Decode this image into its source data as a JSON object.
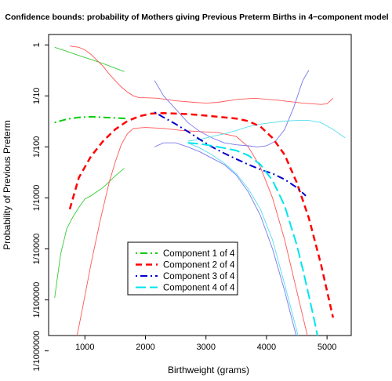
{
  "chart_data": {
    "type": "line",
    "title": "Confidence bounds: probability of Mothers giving Previous Preterm Births in 4−component model",
    "xlabel": "Birthweight (grams)",
    "ylabel": "Probability of Previous Preterm",
    "log_y": true,
    "xlim": [
      400,
      5400
    ],
    "ylim": [
      2e-06,
      1.6
    ],
    "grid": false,
    "legend_position": "bottom-left",
    "x_ticks": [
      {
        "value": 1000,
        "label": "1000"
      },
      {
        "value": 2000,
        "label": "2000"
      },
      {
        "value": 3000,
        "label": "3000"
      },
      {
        "value": 4000,
        "label": "4000"
      },
      {
        "value": 5000,
        "label": "5000"
      }
    ],
    "y_ticks": [
      {
        "value": 1,
        "label": "1"
      },
      {
        "value": 0.1,
        "label": "1/10"
      },
      {
        "value": 0.01,
        "label": "1/100"
      },
      {
        "value": 0.001,
        "label": "1/1000"
      },
      {
        "value": 0.0001,
        "label": "1/10000"
      },
      {
        "value": 1e-05,
        "label": "1/100000"
      },
      {
        "value": 1e-06,
        "label": "1/1000000"
      }
    ],
    "series": [
      {
        "name": "Component 1 of 4",
        "color": "#00cc00",
        "dash": "dotdash",
        "width": 2,
        "x": [
          500,
          700,
          900,
          1100,
          1300,
          1500,
          1700
        ],
        "y": [
          0.03,
          0.035,
          0.038,
          0.039,
          0.038,
          0.037,
          0.036
        ]
      },
      {
        "name": "Component 2 of 4",
        "color": "#ff0000",
        "dash": "dash",
        "width": 2.5,
        "x": [
          750,
          900,
          1100,
          1300,
          1500,
          1700,
          1900,
          2100,
          2300,
          2500,
          2700,
          2900,
          3100,
          3300,
          3500,
          3700,
          3900,
          4100,
          4300,
          4500,
          4700,
          4900,
          5000,
          5100
        ],
        "y": [
          0.0006,
          0.0025,
          0.0065,
          0.013,
          0.022,
          0.032,
          0.04,
          0.045,
          0.046,
          0.045,
          0.044,
          0.042,
          0.04,
          0.038,
          0.036,
          0.032,
          0.025,
          0.015,
          0.007,
          0.002,
          0.0004,
          5e-05,
          1.5e-05,
          4.5e-06
        ]
      },
      {
        "name": "Component 3 of 4",
        "color": "#0000cc",
        "dash": "dotdash",
        "width": 2,
        "x": [
          2150,
          2300,
          2500,
          2700,
          2900,
          3100,
          3300,
          3500,
          3700,
          3900,
          4100,
          4300,
          4500,
          4650
        ],
        "y": [
          0.048,
          0.038,
          0.028,
          0.02,
          0.014,
          0.01,
          0.0075,
          0.0058,
          0.0045,
          0.0036,
          0.003,
          0.0023,
          0.0016,
          0.0011
        ]
      },
      {
        "name": "Component 4 of 4",
        "color": "#00e5ee",
        "dash": "longdash",
        "width": 2,
        "x": [
          2700,
          2900,
          3100,
          3300,
          3500,
          3700,
          3900,
          4100,
          4300,
          4500,
          4600,
          4700,
          4800,
          4850
        ],
        "y": [
          0.012,
          0.0115,
          0.0105,
          0.0095,
          0.0085,
          0.0068,
          0.0045,
          0.0022,
          0.0007,
          0.00012,
          4e-05,
          1.2e-05,
          3.5e-06,
          1.8e-06
        ]
      }
    ],
    "bounds": [
      {
        "color": "#33cc33",
        "width": 0.9,
        "x": [
          500,
          700,
          900,
          1100,
          1300,
          1500,
          1650
        ],
        "y": [
          0.9,
          0.75,
          0.62,
          0.52,
          0.43,
          0.35,
          0.3
        ]
      },
      {
        "color": "#33cc33",
        "width": 0.9,
        "x": [
          500,
          600,
          700,
          800,
          900,
          1000,
          1100,
          1300,
          1500,
          1650
        ],
        "y": [
          1.1e-05,
          8e-05,
          0.00025,
          0.00042,
          0.00065,
          0.00095,
          0.0011,
          0.0016,
          0.0027,
          0.0038
        ]
      },
      {
        "color": "#ff5555",
        "width": 0.9,
        "x": [
          750,
          900,
          1000,
          1100,
          1200,
          1300,
          1400,
          1500,
          1600,
          1700,
          1800,
          1900,
          2000,
          2200,
          2500,
          2800,
          3000,
          3200,
          3500,
          3800,
          4200,
          4600,
          4900,
          5000,
          5100
        ],
        "y": [
          0.95,
          0.9,
          0.8,
          0.65,
          0.5,
          0.38,
          0.27,
          0.2,
          0.15,
          0.12,
          0.1,
          0.092,
          0.092,
          0.09,
          0.08,
          0.075,
          0.072,
          0.075,
          0.085,
          0.09,
          0.082,
          0.072,
          0.068,
          0.07,
          0.09
        ]
      },
      {
        "color": "#ff5555",
        "width": 0.9,
        "x": [
          850,
          950,
          1100,
          1250,
          1400,
          1500,
          1600,
          1700,
          1800,
          2000,
          2300,
          2600,
          2900,
          3200,
          3500,
          3700,
          3900,
          4100,
          4300,
          4500,
          4700
        ],
        "y": [
          1.5e-06,
          6e-06,
          5e-05,
          0.00035,
          0.002,
          0.005,
          0.011,
          0.018,
          0.023,
          0.024,
          0.023,
          0.021,
          0.02,
          0.019,
          0.016,
          0.01,
          0.004,
          0.001,
          0.00015,
          1.5e-05,
          1.5e-06
        ]
      },
      {
        "color": "#7777ee",
        "width": 0.9,
        "x": [
          2150,
          2300,
          2500,
          2700,
          2900,
          3100,
          3300,
          3500,
          3700,
          3850,
          4000,
          4150,
          4300,
          4450,
          4600,
          4700
        ],
        "y": [
          0.2,
          0.1,
          0.055,
          0.03,
          0.02,
          0.015,
          0.012,
          0.011,
          0.0105,
          0.01,
          0.0105,
          0.013,
          0.022,
          0.06,
          0.2,
          0.32
        ]
      },
      {
        "color": "#7777ee",
        "width": 0.9,
        "x": [
          2150,
          2300,
          2500,
          2700,
          2900,
          3100,
          3300,
          3500,
          3700,
          3900,
          4100,
          4300,
          4500,
          4600,
          4700
        ],
        "y": [
          0.01,
          0.012,
          0.012,
          0.01,
          0.008,
          0.006,
          0.0045,
          0.0028,
          0.0013,
          0.00045,
          0.0001,
          1.5e-05,
          1.8e-06,
          6e-07,
          2e-07
        ]
      },
      {
        "color": "#55ddee",
        "width": 0.9,
        "x": [
          2700,
          2900,
          3100,
          3300,
          3500,
          3700,
          3900,
          4100,
          4300,
          4500,
          4700,
          4900,
          5100,
          5300
        ],
        "y": [
          0.013,
          0.014,
          0.016,
          0.018,
          0.021,
          0.025,
          0.028,
          0.03,
          0.032,
          0.033,
          0.033,
          0.03,
          0.022,
          0.015
        ]
      },
      {
        "color": "#55ddee",
        "width": 0.9,
        "x": [
          2700,
          2900,
          3100,
          3300,
          3500,
          3700,
          3900,
          4100,
          4300,
          4500,
          4600,
          4700
        ],
        "y": [
          0.012,
          0.0095,
          0.007,
          0.0048,
          0.003,
          0.0015,
          0.0006,
          0.00015,
          2e-05,
          2.5e-06,
          8e-07,
          2e-07
        ]
      }
    ]
  }
}
